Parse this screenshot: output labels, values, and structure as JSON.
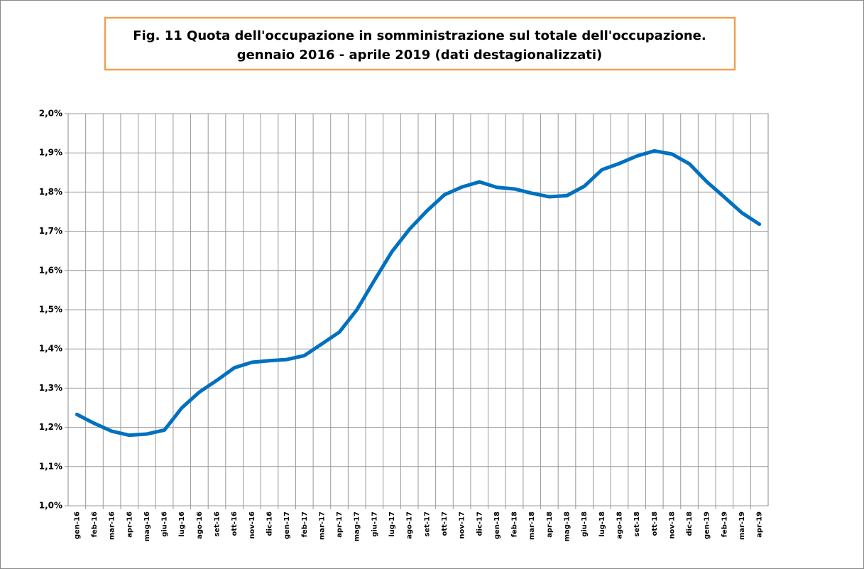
{
  "chart_data": {
    "type": "line",
    "title": "Fig. 11 Quota dell'occupazione in somministrazione sul totale dell'occupazione.",
    "subtitle": "gennaio 2016 - aprile 2019 (dati destagionalizzati)",
    "categories": [
      "gen-16",
      "feb-16",
      "mar-16",
      "apr-16",
      "mag-16",
      "giu-16",
      "lug-16",
      "ago-16",
      "set-16",
      "ott-16",
      "nov-16",
      "dic-16",
      "gen-17",
      "feb-17",
      "mar-17",
      "apr-17",
      "mag-17",
      "giu-17",
      "lug-17",
      "ago-17",
      "set-17",
      "ott-17",
      "nov-17",
      "dic-17",
      "gen-18",
      "feb-18",
      "mar-18",
      "apr-18",
      "mag-18",
      "giu-18",
      "lug-18",
      "ago-18",
      "set-18",
      "ott-18",
      "nov-18",
      "dic-18",
      "gen-19",
      "feb-19",
      "mar-19",
      "apr-19"
    ],
    "values": [
      1.233,
      1.21,
      1.19,
      1.18,
      1.183,
      1.193,
      1.25,
      1.29,
      1.32,
      1.352,
      1.366,
      1.37,
      1.373,
      1.383,
      1.413,
      1.443,
      1.5,
      1.575,
      1.648,
      1.705,
      1.752,
      1.793,
      1.813,
      1.826,
      1.812,
      1.808,
      1.797,
      1.788,
      1.791,
      1.815,
      1.857,
      1.873,
      1.892,
      1.905,
      1.897,
      1.872,
      1.826,
      1.787,
      1.747,
      1.718
    ],
    "color": "#0070c0",
    "ylim": [
      1.0,
      2.0
    ],
    "yticks": [
      {
        "value": 1.0,
        "label": "1,0%"
      },
      {
        "value": 1.1,
        "label": "1,1%"
      },
      {
        "value": 1.2,
        "label": "1,2%"
      },
      {
        "value": 1.3,
        "label": "1,3%"
      },
      {
        "value": 1.4,
        "label": "1,4%"
      },
      {
        "value": 1.5,
        "label": "1,5%"
      },
      {
        "value": 1.6,
        "label": "1,6%"
      },
      {
        "value": 1.7,
        "label": "1,7%"
      },
      {
        "value": 1.8,
        "label": "1,8%"
      },
      {
        "value": 1.9,
        "label": "1,9%"
      },
      {
        "value": 2.0,
        "label": "2,0%"
      }
    ],
    "grid": true
  }
}
